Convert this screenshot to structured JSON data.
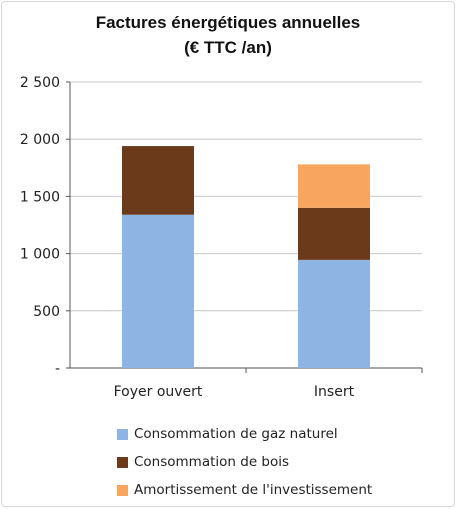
{
  "chart_data": {
    "type": "bar",
    "stacked": true,
    "title": "Factures énergétiques annuelles",
    "subtitle": "(€ TTC /an)",
    "categories": [
      "Foyer ouvert",
      "Insert"
    ],
    "series": [
      {
        "name": "Consommation de gaz naturel",
        "color": "#8db4e2",
        "values": [
          1340,
          945
        ]
      },
      {
        "name": "Consommation de bois",
        "color": "#6b3a1a",
        "values": [
          600,
          455
        ]
      },
      {
        "name": "Amortissement de l'investissement",
        "color": "#f8a560",
        "values": [
          0,
          380
        ]
      }
    ],
    "ylim": [
      0,
      2500
    ],
    "yticks": [
      {
        "value": 0,
        "label": "-"
      },
      {
        "value": 500,
        "label": "500"
      },
      {
        "value": 1000,
        "label": "1 000"
      },
      {
        "value": 1500,
        "label": "1 500"
      },
      {
        "value": 2000,
        "label": "2 000"
      },
      {
        "value": 2500,
        "label": "2 500"
      }
    ],
    "grid": true,
    "legend": "bottom"
  }
}
